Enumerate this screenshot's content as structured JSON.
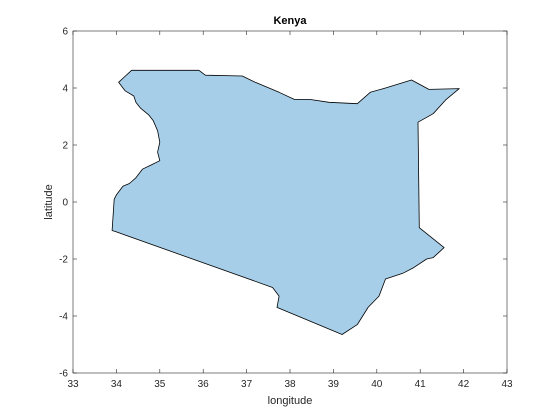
{
  "map": {
    "title": "Kenya",
    "xlabel": "longitude",
    "ylabel": "latitude",
    "xlim": [
      33,
      43
    ],
    "ylim": [
      -6,
      6
    ],
    "xticks": [
      "33",
      "34",
      "35",
      "36",
      "37",
      "38",
      "39",
      "40",
      "41",
      "42",
      "43"
    ],
    "yticks": [
      "-6",
      "-4",
      "-2",
      "0",
      "2",
      "4",
      "6"
    ],
    "fill_color": "#a6cee8",
    "edge_color": "#000000",
    "outline_lonlat": [
      [
        33.9,
        -1.0
      ],
      [
        33.95,
        0.1
      ],
      [
        34.0,
        0.25
      ],
      [
        34.15,
        0.55
      ],
      [
        34.3,
        0.65
      ],
      [
        34.45,
        0.85
      ],
      [
        34.6,
        1.15
      ],
      [
        34.8,
        1.3
      ],
      [
        35.0,
        1.45
      ],
      [
        34.95,
        1.75
      ],
      [
        35.0,
        2.1
      ],
      [
        34.95,
        2.5
      ],
      [
        34.85,
        2.85
      ],
      [
        34.75,
        3.05
      ],
      [
        34.55,
        3.3
      ],
      [
        34.45,
        3.5
      ],
      [
        34.4,
        3.72
      ],
      [
        34.2,
        3.9
      ],
      [
        34.05,
        4.2
      ],
      [
        34.35,
        4.62
      ],
      [
        35.0,
        4.62
      ],
      [
        35.9,
        4.62
      ],
      [
        36.05,
        4.45
      ],
      [
        36.9,
        4.42
      ],
      [
        37.2,
        4.2
      ],
      [
        37.75,
        3.85
      ],
      [
        38.1,
        3.6
      ],
      [
        38.45,
        3.6
      ],
      [
        38.9,
        3.5
      ],
      [
        39.55,
        3.45
      ],
      [
        39.85,
        3.85
      ],
      [
        40.2,
        4.0
      ],
      [
        40.8,
        4.28
      ],
      [
        41.2,
        3.95
      ],
      [
        41.9,
        3.98
      ],
      [
        41.6,
        3.6
      ],
      [
        41.3,
        3.1
      ],
      [
        40.95,
        2.8
      ],
      [
        40.98,
        -0.9
      ],
      [
        41.55,
        -1.6
      ],
      [
        41.3,
        -1.95
      ],
      [
        41.15,
        -2.0
      ],
      [
        40.85,
        -2.3
      ],
      [
        40.6,
        -2.5
      ],
      [
        40.2,
        -2.7
      ],
      [
        40.05,
        -3.3
      ],
      [
        39.8,
        -3.7
      ],
      [
        39.55,
        -4.3
      ],
      [
        39.2,
        -4.65
      ],
      [
        37.7,
        -3.7
      ],
      [
        37.75,
        -3.3
      ],
      [
        37.6,
        -3.0
      ],
      [
        34.0,
        -1.05
      ],
      [
        33.9,
        -1.0
      ]
    ]
  }
}
